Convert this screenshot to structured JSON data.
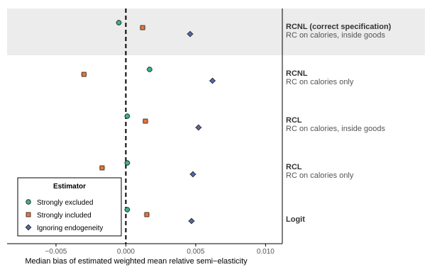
{
  "chart_data": {
    "type": "scatter",
    "title": "",
    "xlabel": "Median bias of estimated weighted mean relative semi−elasticity",
    "ylabel": "",
    "xlim": [
      -0.0085,
      0.0112
    ],
    "xticks": [
      {
        "value": -0.005,
        "label": "−0.005"
      },
      {
        "value": 0.0,
        "label": "0.000"
      },
      {
        "value": 0.005,
        "label": "0.005"
      },
      {
        "value": 0.01,
        "label": "0.010"
      }
    ],
    "reference_line": {
      "x": 0,
      "style": "dashed"
    },
    "grid": false,
    "groups": [
      {
        "key": "rcnl_correct",
        "title": "RCNL (correct specification)",
        "subtitle": "RC on calories, inside goods",
        "highlighted": true
      },
      {
        "key": "rcnl",
        "title": "RCNL",
        "subtitle": "RC on calories only",
        "highlighted": false
      },
      {
        "key": "rcl_inside",
        "title": "RCL",
        "subtitle": "RC on calories, inside goods",
        "highlighted": false
      },
      {
        "key": "rcl",
        "title": "RCL",
        "subtitle": "RC on calories only",
        "highlighted": false
      },
      {
        "key": "logit",
        "title": "Logit",
        "subtitle": "",
        "highlighted": false
      }
    ],
    "series": [
      {
        "name": "Strongly excluded",
        "marker": "circle",
        "color": "#3cb38f",
        "values": [
          -0.0005,
          0.0017,
          0.0001,
          0.0001,
          0.0001
        ]
      },
      {
        "name": "Strongly included",
        "marker": "square",
        "color": "#e8773c",
        "values": [
          0.0012,
          -0.003,
          0.0014,
          -0.0017,
          0.0015
        ]
      },
      {
        "name": "Ignoring endogeneity",
        "marker": "diamond",
        "color": "#5668a6",
        "values": [
          0.0046,
          0.0062,
          0.0052,
          0.0048,
          0.0047
        ]
      }
    ],
    "legend": {
      "title": "Estimator",
      "position": "bottom-left"
    },
    "colors": {
      "highlight_band": "#ececec",
      "axis": "#000000",
      "tick_label": "#555555"
    }
  }
}
